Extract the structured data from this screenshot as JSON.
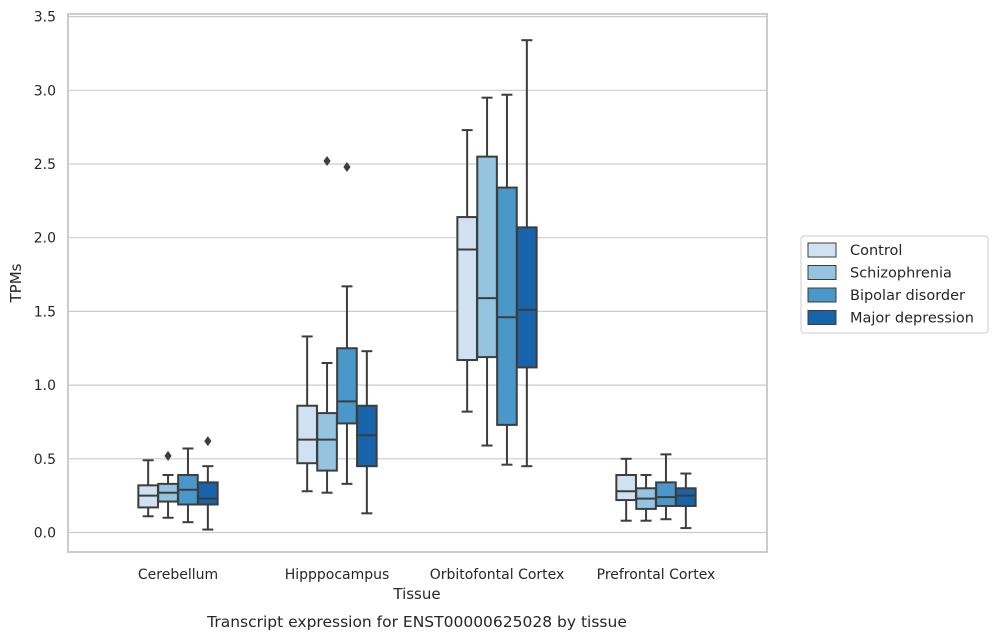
{
  "chart_data": {
    "type": "box",
    "xlabel": "Tissue",
    "ylabel": "TPMs",
    "caption": "Transcript expression for ENST00000625028 by tissue",
    "ylim": [
      -0.13,
      3.5
    ],
    "yticks": [
      0.0,
      0.5,
      1.0,
      1.5,
      2.0,
      2.5,
      3.0,
      3.5
    ],
    "ytick_labels": [
      "0.0",
      "0.5",
      "1.0",
      "1.5",
      "2.0",
      "2.5",
      "3.0",
      "3.5"
    ],
    "grid": "horizontal",
    "legend_position": "right",
    "categories": [
      "Cerebellum",
      "Hipppocampus",
      "Orbitofontal Cortex",
      "Prefrontal Cortex"
    ],
    "colors": {
      "Control": "#d0e1f2",
      "Schizophrenia": "#94c4df",
      "Bipolar disorder": "#4a98c9",
      "Major depression": "#1764ab",
      "box_edge": "#3d3d3d",
      "grid": "#cccccc",
      "outlier": "#3d3d3d"
    },
    "series": [
      {
        "name": "Control",
        "boxes": [
          {
            "whislo": 0.11,
            "q1": 0.17,
            "med": 0.25,
            "q3": 0.32,
            "whishi": 0.49,
            "fliers": []
          },
          {
            "whislo": 0.28,
            "q1": 0.47,
            "med": 0.63,
            "q3": 0.86,
            "whishi": 1.33,
            "fliers": []
          },
          {
            "whislo": 0.82,
            "q1": 1.17,
            "med": 1.92,
            "q3": 2.14,
            "whishi": 2.73,
            "fliers": []
          },
          {
            "whislo": 0.08,
            "q1": 0.22,
            "med": 0.28,
            "q3": 0.39,
            "whishi": 0.5,
            "fliers": []
          }
        ]
      },
      {
        "name": "Schizophrenia",
        "boxes": [
          {
            "whislo": 0.1,
            "q1": 0.21,
            "med": 0.27,
            "q3": 0.33,
            "whishi": 0.39,
            "fliers": [
              0.52
            ]
          },
          {
            "whislo": 0.27,
            "q1": 0.42,
            "med": 0.63,
            "q3": 0.81,
            "whishi": 1.15,
            "fliers": [
              2.52
            ]
          },
          {
            "whislo": 0.59,
            "q1": 1.19,
            "med": 1.59,
            "q3": 2.55,
            "whishi": 2.95,
            "fliers": []
          },
          {
            "whislo": 0.08,
            "q1": 0.16,
            "med": 0.23,
            "q3": 0.3,
            "whishi": 0.39,
            "fliers": []
          }
        ]
      },
      {
        "name": "Bipolar disorder",
        "boxes": [
          {
            "whislo": 0.07,
            "q1": 0.19,
            "med": 0.29,
            "q3": 0.39,
            "whishi": 0.57,
            "fliers": []
          },
          {
            "whislo": 0.33,
            "q1": 0.74,
            "med": 0.89,
            "q3": 1.25,
            "whishi": 1.67,
            "fliers": [
              2.48
            ]
          },
          {
            "whislo": 0.46,
            "q1": 0.73,
            "med": 1.46,
            "q3": 2.34,
            "whishi": 2.97,
            "fliers": []
          },
          {
            "whislo": 0.09,
            "q1": 0.18,
            "med": 0.24,
            "q3": 0.34,
            "whishi": 0.53,
            "fliers": []
          }
        ]
      },
      {
        "name": "Major depression",
        "boxes": [
          {
            "whislo": 0.02,
            "q1": 0.19,
            "med": 0.23,
            "q3": 0.34,
            "whishi": 0.45,
            "fliers": [
              0.62
            ]
          },
          {
            "whislo": 0.13,
            "q1": 0.45,
            "med": 0.66,
            "q3": 0.86,
            "whishi": 1.23,
            "fliers": []
          },
          {
            "whislo": 0.45,
            "q1": 1.12,
            "med": 1.51,
            "q3": 2.07,
            "whishi": 3.34,
            "fliers": []
          },
          {
            "whislo": 0.03,
            "q1": 0.18,
            "med": 0.25,
            "q3": 0.3,
            "whishi": 0.4,
            "fliers": []
          }
        ]
      }
    ]
  }
}
